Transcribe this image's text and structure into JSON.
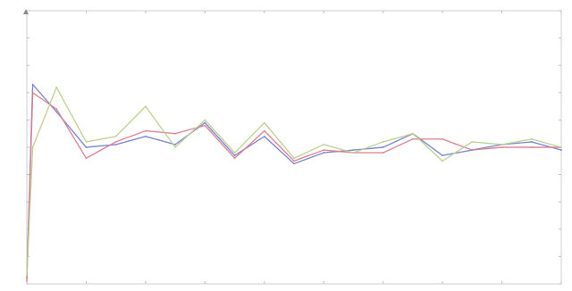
{
  "chart_data": {
    "type": "line",
    "title": "",
    "xlabel": "",
    "ylabel": "",
    "x": [
      0,
      1,
      5,
      10,
      15,
      20,
      25,
      30,
      35,
      40,
      45,
      50,
      55,
      60,
      65,
      70,
      75,
      80,
      85,
      90
    ],
    "xlim": [
      0,
      90
    ],
    "ylim": [
      0,
      10
    ],
    "grid": false,
    "legend": "none",
    "series": [
      {
        "color": "#6f7fd6",
        "values": [
          0.2,
          7.3,
          6.3,
          5.0,
          5.1,
          5.4,
          5.1,
          5.9,
          4.7,
          5.4,
          4.4,
          4.8,
          4.9,
          5.0,
          5.5,
          4.7,
          4.9,
          5.1,
          5.2,
          4.9
        ]
      },
      {
        "color": "#e07a8a",
        "values": [
          0.1,
          7.0,
          6.4,
          4.6,
          5.2,
          5.6,
          5.5,
          5.8,
          4.6,
          5.6,
          4.5,
          4.9,
          4.8,
          4.8,
          5.3,
          5.3,
          4.9,
          5.0,
          5.0,
          5.0
        ]
      },
      {
        "color": "#b8d188",
        "values": [
          0.3,
          5.0,
          7.2,
          5.2,
          5.4,
          6.5,
          5.0,
          6.0,
          4.8,
          5.9,
          4.6,
          5.1,
          4.8,
          5.2,
          5.5,
          4.5,
          5.2,
          5.1,
          5.3,
          5.0
        ]
      }
    ]
  }
}
